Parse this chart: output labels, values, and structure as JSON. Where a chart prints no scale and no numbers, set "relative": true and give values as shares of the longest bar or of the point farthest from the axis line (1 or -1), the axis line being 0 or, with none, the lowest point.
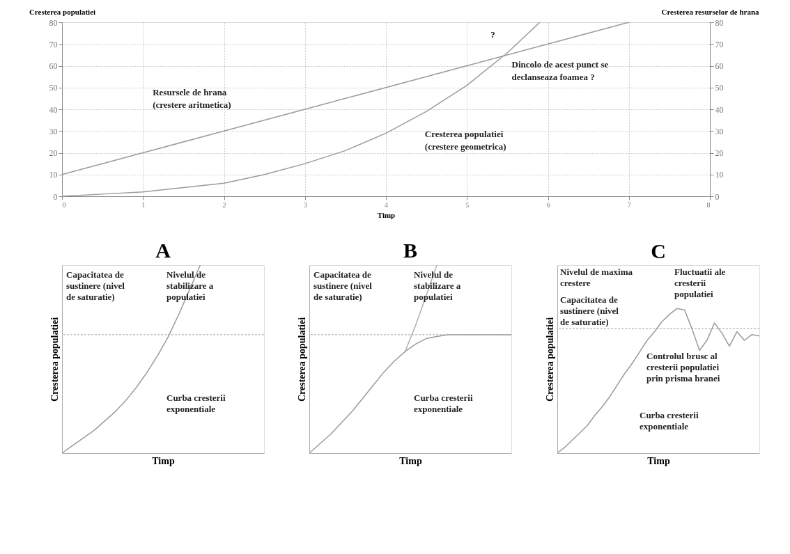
{
  "chart_data": [
    {
      "type": "line",
      "xlabel": "Timp",
      "ylabel": "Cresterea populatiei",
      "y2label": "Cresterea resurselor de hrana",
      "xlim": [
        0,
        8
      ],
      "xticks": [
        0,
        1,
        2,
        3,
        4,
        5,
        6,
        7,
        8
      ],
      "ylim": [
        0,
        80
      ],
      "yticks": [
        0,
        10,
        20,
        30,
        40,
        50,
        60,
        70,
        80
      ],
      "y2lim": [
        0,
        80
      ],
      "y2ticks": [
        0,
        10,
        20,
        30,
        40,
        50,
        60,
        70,
        80
      ],
      "grid": true,
      "legend": false,
      "series": [
        {
          "name": "Resursele de hrana (crestere aritmetica)",
          "color": "#9a9a9a",
          "axis": "y2",
          "x": [
            0,
            1,
            2,
            3,
            4,
            5,
            6,
            7
          ],
          "values": [
            10,
            20,
            30,
            40,
            50,
            60,
            70,
            80
          ]
        },
        {
          "name": "Cresterea populatiei (crestere geometrica)",
          "color": "#9a9a9a",
          "x": [
            0,
            0.5,
            1,
            1.5,
            2,
            2.5,
            3,
            3.5,
            4,
            4.5,
            5,
            5.5,
            5.9
          ],
          "values": [
            0,
            1,
            2,
            4,
            6,
            10,
            15,
            21,
            29,
            39,
            51,
            66,
            80
          ]
        }
      ],
      "annotations": [
        {
          "text": "Dincolo de acest punct se declanseaza foamea ?",
          "x": 5.45,
          "y": 65
        },
        "?"
      ]
    },
    {
      "type": "line",
      "relative": true,
      "title": "A",
      "xlabel": "Timp",
      "ylabel": "Cresterea populatiei",
      "legend": false,
      "categories": [
        null,
        null,
        null,
        null,
        null,
        null,
        null,
        null,
        null,
        null,
        null,
        null,
        null,
        null,
        null,
        null,
        null,
        null,
        null,
        null
      ],
      "series": [
        {
          "color": "#9a9a9a",
          "values": [
            0,
            0.04,
            0.08,
            0.12,
            0.17,
            0.22,
            0.28,
            0.35,
            0.43,
            0.52,
            0.62,
            0.74,
            0.87,
            1.0,
            null,
            null,
            null,
            null,
            null,
            null
          ]
        }
      ],
      "ref_lines": [
        {
          "axis": "y",
          "value": 0.63,
          "color": "#a0a0a0"
        }
      ],
      "annotations": [
        "Capacitatea de sustinere (nivel de saturatie)",
        "Nivelul de stabilizare a populatiei",
        "Curba cresterii exponentiale"
      ]
    },
    {
      "type": "line",
      "relative": true,
      "title": "B",
      "xlabel": "Timp",
      "ylabel": "Cresterea populatiei",
      "legend": false,
      "categories": [
        null,
        null,
        null,
        null,
        null,
        null,
        null,
        null,
        null,
        null,
        null,
        null,
        null,
        null,
        null,
        null,
        null,
        null,
        null,
        null
      ],
      "series": [
        {
          "color": "#9a9a9a",
          "values": [
            0,
            0.05,
            0.1,
            0.16,
            0.22,
            0.29,
            0.36,
            0.43,
            0.49,
            0.54,
            0.58,
            0.61,
            0.62,
            0.63,
            0.63,
            0.63,
            0.63,
            0.63,
            0.63,
            0.63
          ]
        },
        {
          "color": "#b0b0b0",
          "values": [
            null,
            null,
            null,
            null,
            null,
            null,
            null,
            null,
            null,
            0.54,
            0.68,
            0.84,
            1.0,
            null,
            null,
            null,
            null,
            null,
            null,
            null
          ]
        }
      ],
      "ref_lines": [
        {
          "axis": "y",
          "value": 0.63,
          "color": "#a0a0a0"
        }
      ],
      "annotations": [
        "Capacitatea de sustinere (nivel de saturatie)",
        "Nivelul de stabilizare a populatiei",
        "Curba cresterii exponentiale"
      ]
    },
    {
      "type": "line",
      "relative": true,
      "title": "C",
      "xlabel": "Timp",
      "ylabel": "Cresterea populatiei",
      "legend": false,
      "categories": [
        null,
        null,
        null,
        null,
        null,
        null,
        null,
        null,
        null,
        null,
        null,
        null,
        null,
        null,
        null,
        null,
        null,
        null,
        null,
        null,
        null,
        null,
        null,
        null,
        null,
        null,
        null,
        null
      ],
      "series": [
        {
          "color": "#9a9a9a",
          "values": [
            0,
            0.04,
            0.09,
            0.14,
            0.19,
            0.26,
            0.32,
            0.39,
            0.47,
            0.55,
            0.62,
            0.7,
            0.78,
            0.84,
            0.91,
            0.96,
            1.0,
            0.99,
            0.86,
            0.71,
            0.78,
            0.9,
            0.83,
            0.74,
            0.84,
            0.78,
            0.82,
            0.81
          ]
        }
      ],
      "ref_lines": [
        {
          "axis": "y",
          "value": 0.86,
          "color": "#a0a0a0"
        }
      ],
      "annotations": [
        "Nivelul de maxima crestere",
        "Capacitatea de sustinere (nivel de saturatie)",
        "Fluctuatii ale cresterii populatiei",
        "Controlul brusc al cresterii populatiei prin prisma hranei",
        "Curba cresterii exponentiale"
      ]
    }
  ]
}
